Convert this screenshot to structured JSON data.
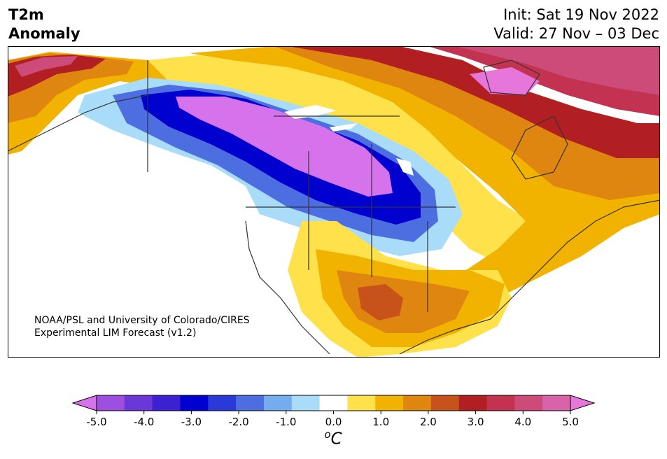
{
  "header": {
    "title": "T2m\nAnomaly",
    "init": "Init: Sat 19 Nov 2022",
    "valid": "Valid: 27 Nov – 03 Dec"
  },
  "credit": {
    "line1": "NOAA/PSL and University of Colorado/CIRES",
    "line2": "Experimental LIM Forecast (v1.2)"
  },
  "colorbar": {
    "unit_base": "C",
    "unit_sup": "o",
    "range": [
      -5.0,
      5.0
    ],
    "step": 0.5,
    "ticks": [
      "-5.0",
      "-4.0",
      "-3.0",
      "-2.0",
      "-1.0",
      "0.0",
      "1.0",
      "2.0",
      "3.0",
      "4.0",
      "5.0"
    ],
    "colors": [
      "#d672ec",
      "#9d4fe0",
      "#6b37d6",
      "#3c20d3",
      "#0000cf",
      "#2a3ad9",
      "#4d6ee0",
      "#74acf0",
      "#a9dcf8",
      "#ffffff",
      "#ffe14c",
      "#f2b300",
      "#de8610",
      "#c7531a",
      "#b21f22",
      "#c33250",
      "#cc4b78",
      "#d863a9",
      "#e676da"
    ]
  },
  "map": {
    "fills": {
      "cold_core": "#d672ec",
      "deep_blue": "#0000cf",
      "mid_blue": "#4d6ee0",
      "light_blue": "#a9dcf8",
      "neutral": "#ffffff",
      "yellow": "#ffe14c",
      "gold": "#f2b300",
      "orange": "#de8610",
      "burnt": "#c7531a",
      "red": "#b21f22",
      "crimson": "#c33250",
      "pink": "#cc4b78",
      "magenta": "#e676da"
    },
    "outline_color": "#333333"
  }
}
